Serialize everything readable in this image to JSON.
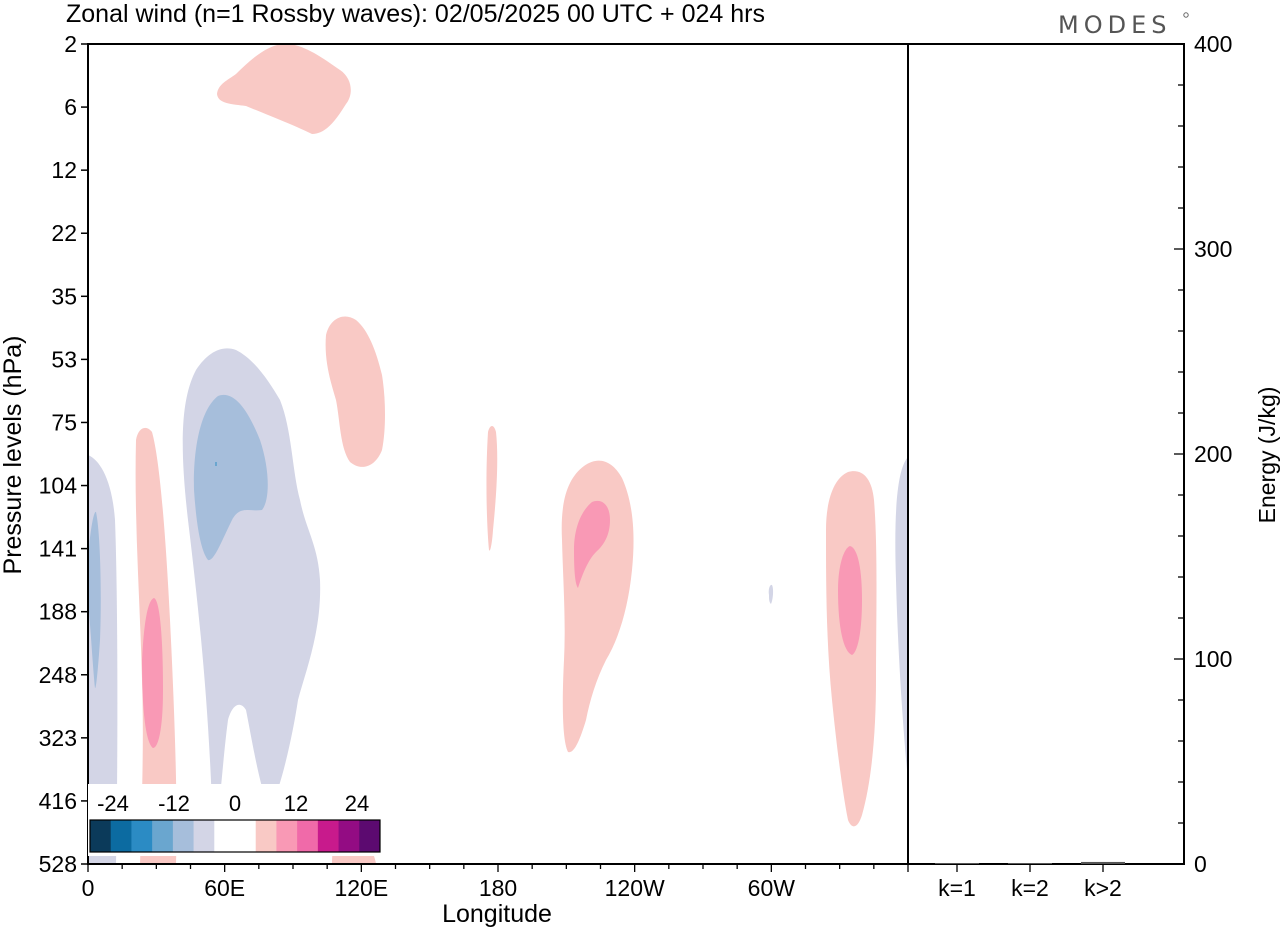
{
  "chart_data": {
    "type": "heatmap",
    "title": "Zonal wind (n=1 Rossby waves):  02/05/2025  00 UTC  + 024 hrs",
    "brand": "MODES",
    "xlabel": "Longitude",
    "ylabel": "Pressure levels (hPa)",
    "y2label": "Energy (J/kg)",
    "x_ticks": [
      {
        "lon": 0,
        "label": "0"
      },
      {
        "lon": 60,
        "label": "60E"
      },
      {
        "lon": 120,
        "label": "120E"
      },
      {
        "lon": 180,
        "label": "180"
      },
      {
        "lon": 240,
        "label": "120W"
      },
      {
        "lon": 300,
        "label": "60W"
      }
    ],
    "x_range": [
      0,
      360
    ],
    "y_levels": [
      "2",
      "6",
      "12",
      "22",
      "35",
      "53",
      "75",
      "104",
      "141",
      "188",
      "248",
      "323",
      "416",
      "528"
    ],
    "energy_axis": {
      "range": [
        0,
        400
      ],
      "ticks": [
        "0",
        "100",
        "200",
        "300",
        "400"
      ],
      "minor_step": 20
    },
    "energy_bars": {
      "categories": [
        "k=1",
        "k=2",
        "k>2"
      ],
      "values": [
        0.3,
        0.3,
        1.0
      ]
    },
    "colorbar": {
      "labels": [
        "-24",
        "-12",
        "0",
        "12",
        "24"
      ],
      "colors": [
        "#0b3a5a",
        "#0c6ba1",
        "#2b8bc4",
        "#6aa6cf",
        "#a6bedb",
        "#d3d5e6",
        "#ffffff",
        "#ffffff",
        "#f9c9c5",
        "#f999b5",
        "#f06aa9",
        "#c81a8c",
        "#930c83",
        "#5c0a70"
      ]
    },
    "legend_position": "bottom-left",
    "grid": false
  }
}
